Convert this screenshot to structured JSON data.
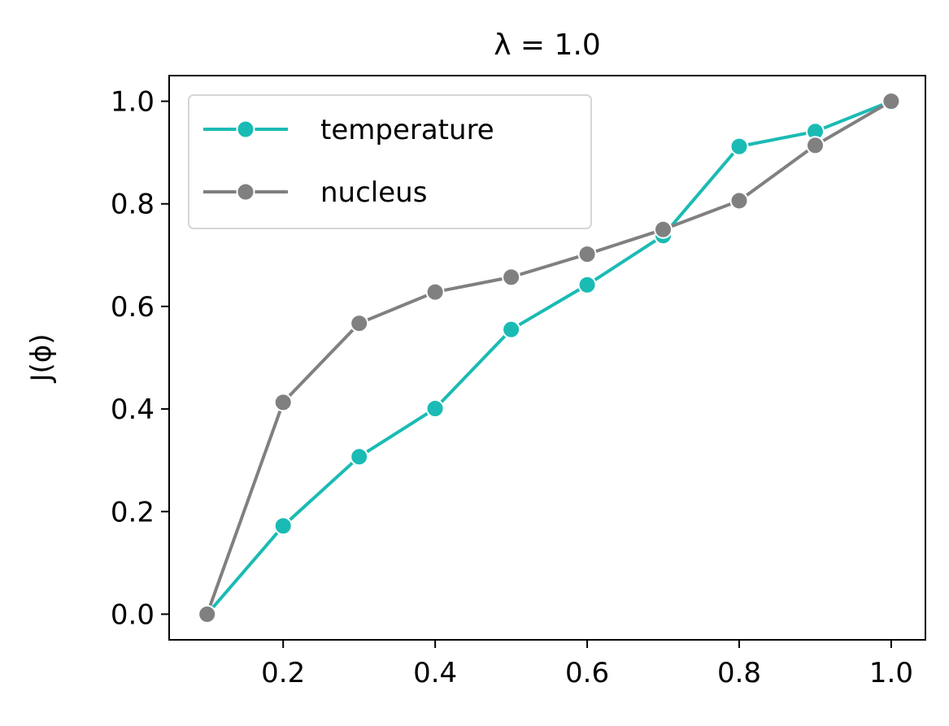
{
  "chart_data": {
    "type": "line",
    "title": "λ = 1.0",
    "xlabel": "",
    "ylabel": "J(ϕ)",
    "x": [
      0.1,
      0.2,
      0.3,
      0.4,
      0.5,
      0.6,
      0.7,
      0.8,
      0.9,
      1.0
    ],
    "xlim": [
      0.05,
      1.045
    ],
    "ylim": [
      -0.05,
      1.05
    ],
    "x_ticks": [
      0.2,
      0.4,
      0.6,
      0.8,
      1.0
    ],
    "x_tick_labels": [
      "0.2",
      "0.4",
      "0.6",
      "0.8",
      "1.0"
    ],
    "y_ticks": [
      0.0,
      0.2,
      0.4,
      0.6,
      0.8,
      1.0
    ],
    "y_tick_labels": [
      "0.0",
      "0.2",
      "0.4",
      "0.6",
      "0.8",
      "1.0"
    ],
    "grid": false,
    "legend_position": "top-left",
    "series": [
      {
        "name": "temperature",
        "color": "#1abbb4",
        "marker": "circle",
        "values": [
          0.0,
          0.172,
          0.307,
          0.401,
          0.555,
          0.642,
          0.738,
          0.912,
          0.941,
          1.0
        ]
      },
      {
        "name": "nucleus",
        "color": "#808080",
        "marker": "circle",
        "values": [
          0.0,
          0.413,
          0.567,
          0.628,
          0.657,
          0.702,
          0.75,
          0.806,
          0.914,
          1.0
        ]
      }
    ]
  }
}
